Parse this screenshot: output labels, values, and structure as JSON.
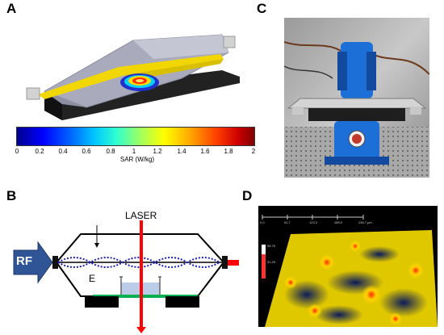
{
  "panels": {
    "a": {
      "letter": "A"
    },
    "b": {
      "letter": "B"
    },
    "c": {
      "letter": "C"
    },
    "d": {
      "letter": "D"
    }
  },
  "colorbar": {
    "ticks": [
      "0",
      "0.2",
      "0.4",
      "0.6",
      "0.8",
      "1",
      "1.2",
      "1.4",
      "1.6",
      "1.8",
      "2"
    ],
    "label": "SAR (W/kg)"
  },
  "schematic": {
    "rf_label": "RF",
    "laser_label": "LASER",
    "field_label": "E"
  },
  "scale": {
    "ticks": [
      "0.0",
      "61.7",
      "123.3",
      "185.0",
      "246.7 μm"
    ]
  },
  "heatmap_bar": {
    "ticks": [
      "58.75",
      "",
      "31.25",
      "",
      ""
    ]
  },
  "colors": {
    "rf_box": "#2f5597",
    "laser": "#ff0000",
    "wave": "#1f1fb4",
    "substrate": "#00b050",
    "blue_holder": "#1d6fd8"
  }
}
